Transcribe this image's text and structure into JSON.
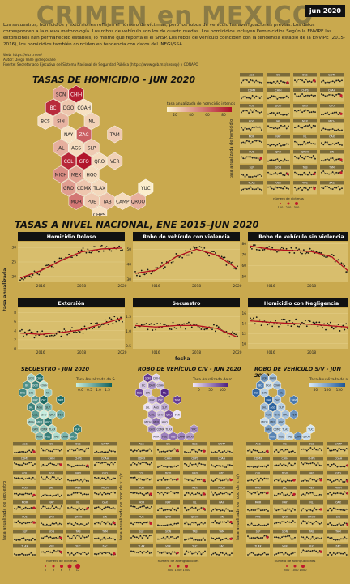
{
  "header": {
    "title": "CRIMEN en MEXICO",
    "date_badge": "jun 2020",
    "intro": "Los secuestros, homicidios y extorsiones reflejen el número de víctimas, pero los robos de vehículo las averiguaciones previas. Los datos corresponden a la nueva metodología. Los robos de vehículo son los de cuarto ruedas. Los homicidios incluyen Feminicidios Según la ENVIPE las extorsiones han permanecido estables, lo mismo que reporta el el SNSP. Los robos de vehículo coinciden con la tendencia estable de la ENVIPE (2015-2016), los homicidios también coinciden en tendencia con datos del INEGI/SSA",
    "web": "Web: https://elcri.men/",
    "author": "Autor: Diego Valle @diegovalle",
    "source": "Fuente: Secretariado Ejecutivo del Sistema Nacional de Seguridad Pública (https://www.gob.mx/sesnsp) y CONAPO"
  },
  "homicide_map": {
    "section_title": "TASAS DE HOMICIDIO - JUN 2020",
    "legend_title": "tasa anualizada de homicidio intencional",
    "legend_ticks": [
      "20",
      "40",
      "60",
      "80"
    ],
    "colors": {
      "low": "#fdf3d0",
      "high": "#b01028"
    },
    "states": [
      {
        "code": "SON",
        "v": 38
      },
      {
        "code": "CHIH",
        "v": 95
      },
      {
        "code": "BC",
        "v": 88
      },
      {
        "code": "DGO",
        "v": 20
      },
      {
        "code": "COAH",
        "v": 8
      },
      {
        "code": "BCS",
        "v": 10
      },
      {
        "code": "SIN",
        "v": 28
      },
      {
        "code": "NL",
        "v": 15
      },
      {
        "code": "NAY",
        "v": 8
      },
      {
        "code": "ZAC",
        "v": 65
      },
      {
        "code": "TAM",
        "v": 18
      },
      {
        "code": "JAL",
        "v": 30
      },
      {
        "code": "AGS",
        "v": 10
      },
      {
        "code": "SLP",
        "v": 18
      },
      {
        "code": "COL",
        "v": 90
      },
      {
        "code": "GTO",
        "v": 98
      },
      {
        "code": "QRO",
        "v": 10
      },
      {
        "code": "VER",
        "v": 15
      },
      {
        "code": "MICH",
        "v": 45
      },
      {
        "code": "MEX",
        "v": 35
      },
      {
        "code": "HGO",
        "v": 10
      },
      {
        "code": "GRO",
        "v": 38
      },
      {
        "code": "CDMX",
        "v": 20
      },
      {
        "code": "TLAX",
        "v": 12
      },
      {
        "code": "YUC",
        "v": 2
      },
      {
        "code": "MOR",
        "v": 55
      },
      {
        "code": "PUE",
        "v": 18
      },
      {
        "code": "TAB",
        "v": 22
      },
      {
        "code": "CAMP",
        "v": 10
      },
      {
        "code": "CHPS",
        "v": 8
      },
      {
        "code": "QROO",
        "v": 30
      },
      {
        "code": "OAX",
        "v": 22
      }
    ]
  },
  "small_multiples": {
    "homicide_ylabel": "tasa anualizada de homicidio",
    "homicide_size_legend_title": "número de víctimas",
    "homicide_size_ticks": [
      "100",
      "200",
      "300"
    ],
    "secuestro_ylabel": "tasa anualizada de secuestro",
    "secuestro_size_legend_title": "número de víctimas",
    "secuestro_size_ticks": [
      "0",
      "3",
      "6",
      "9",
      "12"
    ],
    "rvcv_ylabel": "tasa anualizada de robo de v. c/v",
    "rvcv_size_legend_title": "número de averiguaciones",
    "rvcv_size_ticks": [
      "500",
      "1000",
      "1500"
    ],
    "rvsv_ylabel": "tasa anualizada de robo de v. s/v",
    "rvsv_size_legend_title": "número de averiguaciones",
    "rvsv_size_ticks": [
      "500",
      "1000",
      "1500"
    ],
    "states": [
      "AGS",
      "BC",
      "BCS",
      "CAMP",
      "CDMX",
      "CHIH",
      "CHPS",
      "COAH",
      "COL",
      "DGO",
      "GRO",
      "GTO",
      "HGO",
      "JAL",
      "MEX",
      "MICH",
      "MOR",
      "NAY",
      "NL",
      "OAX",
      "PUE",
      "QRO",
      "QROO",
      "SIN",
      "SLP",
      "SON",
      "TAB",
      "TAM",
      "TLAX",
      "VER",
      "YUC",
      "ZAC"
    ]
  },
  "national": {
    "section_title": "TASAS A NIVEL NACIONAL, ENE 2015–JUN 2020",
    "ylabel": "tasa anualizada",
    "xlabel": "fecha",
    "x_ticks": [
      "2016",
      "2018",
      "2020"
    ]
  },
  "chart_data": [
    {
      "type": "scatter",
      "title": "Homicidio Doloso",
      "x": [
        "2015",
        "2016",
        "2017",
        "2018",
        "2019",
        "2020"
      ],
      "yticks": [
        "20",
        "25",
        "30"
      ],
      "ylim": [
        18,
        32
      ],
      "trend": [
        19.5,
        22,
        25.5,
        28.5,
        29.5,
        29.8
      ],
      "noise": 1.2
    },
    {
      "type": "scatter",
      "title": "Robo de vehículo con violencia",
      "x": [
        "2015",
        "2016",
        "2017",
        "2018",
        "2019",
        "2020"
      ],
      "yticks": [
        "30",
        "40",
        "50"
      ],
      "ylim": [
        28,
        55
      ],
      "trend": [
        34,
        36,
        45,
        50,
        46,
        37
      ],
      "noise": 2.5
    },
    {
      "type": "scatter",
      "title": "Robo de vehículo sin violencia",
      "x": [
        "2015",
        "2016",
        "2017",
        "2018",
        "2019",
        "2020"
      ],
      "yticks": [
        "50",
        "60",
        "70",
        "80"
      ],
      "ylim": [
        45,
        82
      ],
      "trend": [
        78,
        75,
        74,
        73,
        68,
        52
      ],
      "noise": 2.5
    },
    {
      "type": "scatter",
      "title": "Extorsión",
      "x": [
        "2015",
        "2016",
        "2017",
        "2018",
        "2019",
        "2020"
      ],
      "yticks": [
        "0",
        "2",
        "4",
        "6",
        "8"
      ],
      "ylim": [
        0,
        9
      ],
      "trend": [
        3.5,
        3.2,
        3.6,
        4.2,
        5.5,
        6.8
      ],
      "noise": 0.9
    },
    {
      "type": "scatter",
      "title": "Secuestro",
      "x": [
        "2015",
        "2016",
        "2017",
        "2018",
        "2019",
        "2020"
      ],
      "yticks": [
        "0.5",
        "1.0",
        "1.5"
      ],
      "ylim": [
        0.4,
        1.8
      ],
      "trend": [
        1.2,
        1.15,
        1.2,
        1.2,
        1.1,
        0.8
      ],
      "noise": 0.12
    },
    {
      "type": "scatter",
      "title": "Homicidio con Negligencia",
      "x": [
        "2015",
        "2016",
        "2017",
        "2018",
        "2019",
        "2020"
      ],
      "yticks": [
        "10",
        "12",
        "14",
        "16"
      ],
      "ylim": [
        9,
        17
      ],
      "trend": [
        14.5,
        14.2,
        14,
        13.8,
        13.5,
        13.2
      ],
      "noise": 0.9
    }
  ],
  "secuestro_map": {
    "section_title": "SECUESTRO - JUN 2020",
    "legend_title": "Tasa Anualizada de Secuestro",
    "legend_ticks": [
      "0.0",
      "0.5",
      "1.0",
      "1.5"
    ],
    "colors": {
      "low": "#c8eee0",
      "high": "#0e5f5b"
    }
  },
  "rvcv_map": {
    "section_title": "ROBO DE VEHÍCULO C/V - JUN 2020",
    "legend_title": "Tasa Anualizada de robo de vehículo c/v",
    "legend_ticks": [
      "0",
      "50",
      "100"
    ],
    "colors": {
      "low": "#efe6f6",
      "high": "#4a1c80"
    }
  },
  "rvsv_map": {
    "section_title": "ROBO DE VEHÍCULO S/V - JUN 2020",
    "legend_title": "Tasa Anualizada de robo de vehículo s/v",
    "legend_ticks": [
      "50",
      "100",
      "150"
    ],
    "colors": {
      "low": "#d8e9f6",
      "high": "#1b5596"
    }
  }
}
